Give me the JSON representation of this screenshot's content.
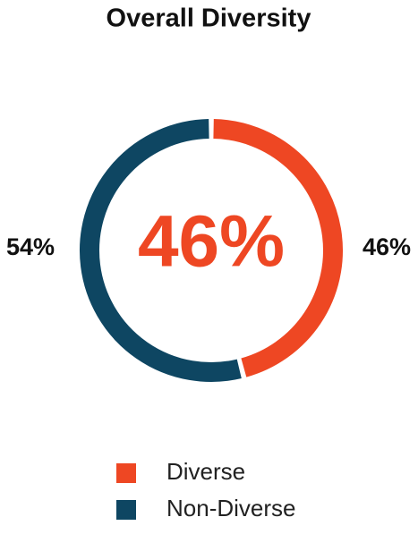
{
  "chart_data": {
    "type": "pie",
    "title": "Overall Diversity",
    "categories": [
      "Diverse",
      "Non-Diverse"
    ],
    "values": [
      46,
      54
    ],
    "value_labels": [
      "46%",
      "54%"
    ],
    "colors": [
      "#ee4723",
      "#0e4662"
    ],
    "center_label": "46%",
    "legend": "bottom"
  }
}
